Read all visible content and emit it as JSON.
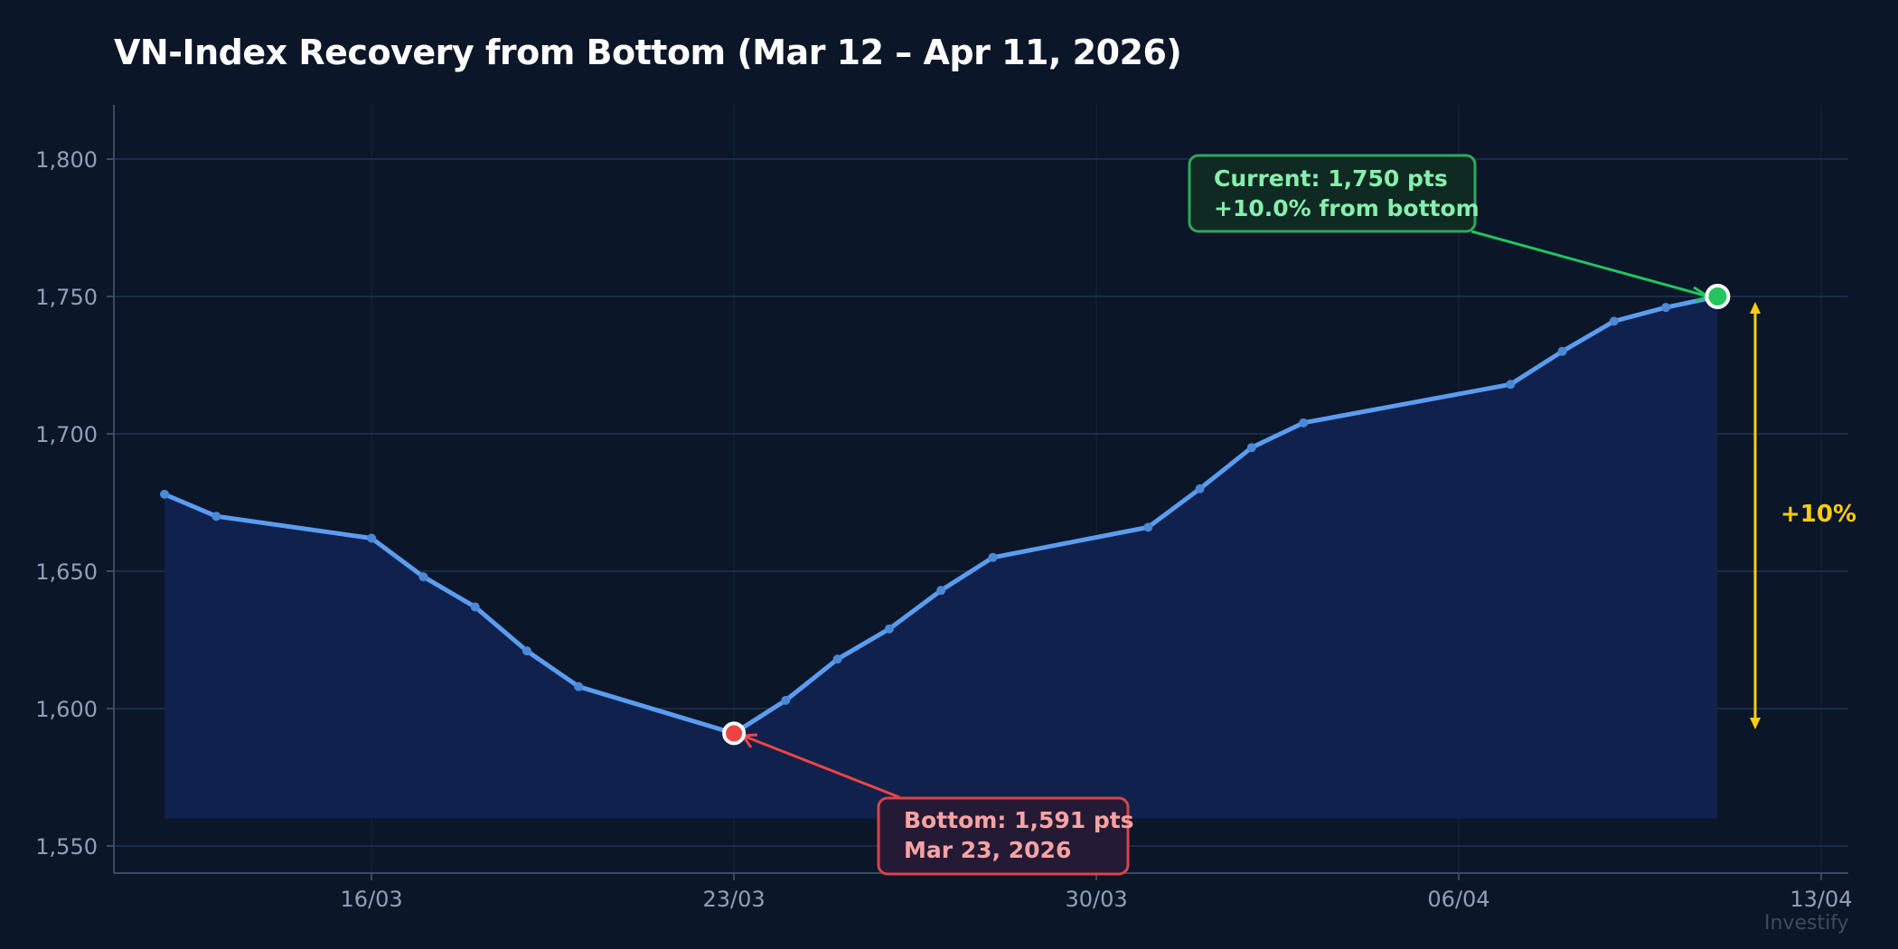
{
  "title": "VN-Index Recovery from Bottom (Mar 12 – Apr 11, 2026)",
  "watermark": "Investify",
  "colors": {
    "background": "#0b1628",
    "line": "#5b9cf0",
    "area": "#102250",
    "grid": "#1c3354",
    "axis": "#3a4a60",
    "bottom_marker": "#ef4444",
    "current_marker": "#22c55e",
    "range_arrow": "#facc15"
  },
  "annotations": {
    "bottom": {
      "line1": "Bottom: 1,591 pts",
      "line2": "Mar 23, 2026"
    },
    "current": {
      "line1": "Current: 1,750 pts",
      "line2": "+10.0% from bottom"
    },
    "range_label": "+10%"
  },
  "chart_data": {
    "type": "line",
    "title": "VN-Index Recovery from Bottom (Mar 12 – Apr 11, 2026)",
    "xlabel": "",
    "ylabel": "",
    "ylim": [
      1540,
      1820
    ],
    "grid": true,
    "area_fill": true,
    "area_baseline": 1560,
    "y_ticks": [
      "1,550",
      "1,600",
      "1,650",
      "1,700",
      "1,750",
      "1,800"
    ],
    "y_tick_values": [
      1550,
      1600,
      1650,
      1700,
      1750,
      1800
    ],
    "x_ticks": [
      "16/03",
      "23/03",
      "30/03",
      "06/04",
      "13/04"
    ],
    "x": [
      "2026-03-12",
      "2026-03-13",
      "2026-03-16",
      "2026-03-17",
      "2026-03-18",
      "2026-03-19",
      "2026-03-20",
      "2026-03-23",
      "2026-03-24",
      "2026-03-25",
      "2026-03-26",
      "2026-03-27",
      "2026-03-28",
      "2026-03-31",
      "2026-04-01",
      "2026-04-02",
      "2026-04-03",
      "2026-04-07",
      "2026-04-08",
      "2026-04-09",
      "2026-04-10",
      "2026-04-11"
    ],
    "day_offsets": [
      0,
      1,
      4,
      5,
      6,
      7,
      8,
      11,
      12,
      13,
      14,
      15,
      16,
      19,
      20,
      21,
      22,
      26,
      27,
      28,
      29,
      30
    ],
    "series": [
      {
        "name": "VN-Index",
        "values": [
          1678,
          1670,
          1662,
          1648,
          1637,
          1621,
          1608,
          1591,
          1603,
          1618,
          1629,
          1643,
          1655,
          1666,
          1680,
          1695,
          1704,
          1718,
          1730,
          1741,
          1746,
          1750
        ]
      }
    ],
    "annotations": [
      {
        "label": "Bottom: 1,591 pts / Mar 23, 2026",
        "x": "2026-03-23",
        "y": 1591
      },
      {
        "label": "Current: 1,750 pts / +10.0% from bottom",
        "x": "2026-04-11",
        "y": 1750
      },
      {
        "label": "+10%",
        "type": "range-arrow",
        "from": 1591,
        "to": 1750
      }
    ],
    "watermark": "Investify"
  }
}
